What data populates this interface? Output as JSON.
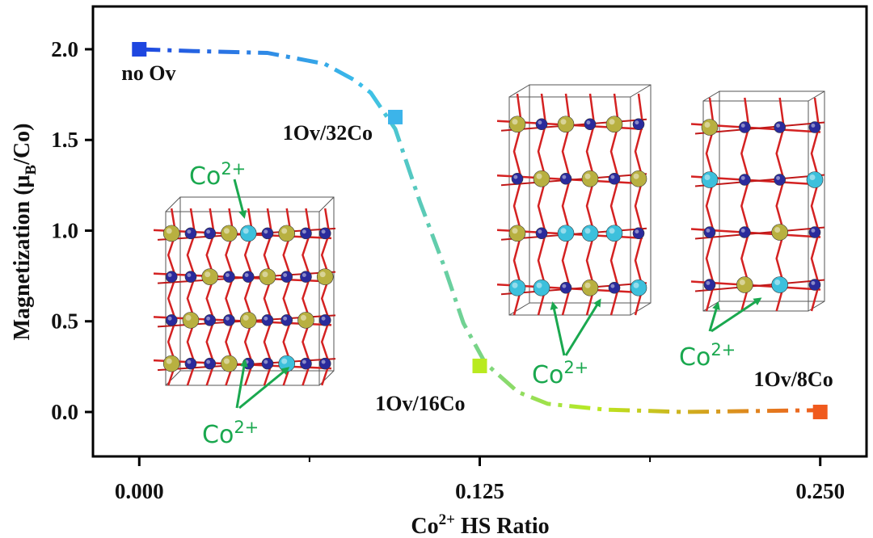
{
  "chart_data": {
    "type": "scatter",
    "x": [
      0,
      0.094,
      0.125,
      0.25
    ],
    "values": [
      2.0,
      1.626,
      0.254,
      0.0
    ],
    "colors": [
      "#1e46e0",
      "#3cb4ea",
      "#b9ea1f",
      "#f05a1e"
    ],
    "point_labels": [
      "no Ov",
      "1Ov/32Co",
      "1Ov/16Co",
      "1Ov/8Co"
    ],
    "curve": {
      "x": [
        0,
        0.02,
        0.047,
        0.068,
        0.079,
        0.085,
        0.094,
        0.103,
        0.112,
        0.119,
        0.127,
        0.139,
        0.15,
        0.171,
        0.2,
        0.25
      ],
      "values": [
        2.0,
        1.99,
        1.98,
        1.92,
        1.83,
        1.76,
        1.56,
        1.16,
        0.8,
        0.49,
        0.27,
        0.11,
        0.045,
        0.013,
        0.0,
        0.01
      ],
      "colors": [
        "#1e46e0",
        "#3cc0ea",
        "#b9ea1f",
        "#f05a1e"
      ]
    },
    "annotations": [
      {
        "text": "Co",
        "sup": "2+"
      },
      {
        "text": "Co",
        "sup": "2+"
      },
      {
        "text": "Co",
        "sup": "2+"
      },
      {
        "text": "Co",
        "sup": "2+"
      }
    ],
    "xlabel": {
      "text": "Co",
      "sup": "2+",
      "rest": " HS Ratio"
    },
    "ylabel": {
      "text": "Magnetization (μ",
      "sub": "B",
      "rest": "/Co)"
    },
    "xlim": [
      -0.017,
      0.267
    ],
    "ylim": [
      -0.245,
      2.236
    ],
    "xticks": [
      {
        "value": 0,
        "label": "0.000"
      },
      {
        "value": 0.125,
        "label": "0.125"
      },
      {
        "value": 0.25,
        "label": "0.250"
      }
    ],
    "xminor": [
      0.0625,
      0.1875
    ],
    "yticks": [
      {
        "value": 0,
        "label": "0.0"
      },
      {
        "value": 0.5,
        "label": "0.5"
      },
      {
        "value": 1,
        "label": "1.0"
      },
      {
        "value": 1.5,
        "label": "1.5"
      },
      {
        "value": 2,
        "label": "2.0"
      }
    ]
  }
}
